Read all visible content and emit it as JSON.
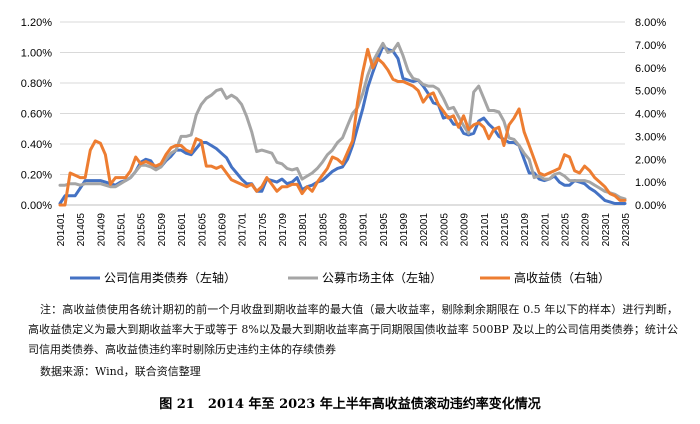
{
  "chart_data": {
    "type": "line",
    "categories": [
      "201401",
      "201402",
      "201403",
      "201404",
      "201405",
      "201406",
      "201407",
      "201408",
      "201409",
      "201410",
      "201411",
      "201412",
      "201501",
      "201502",
      "201503",
      "201504",
      "201505",
      "201506",
      "201507",
      "201508",
      "201509",
      "201510",
      "201511",
      "201512",
      "201601",
      "201602",
      "201603",
      "201604",
      "201605",
      "201606",
      "201607",
      "201608",
      "201609",
      "201610",
      "201611",
      "201612",
      "201701",
      "201702",
      "201703",
      "201704",
      "201705",
      "201706",
      "201707",
      "201708",
      "201709",
      "201710",
      "201711",
      "201712",
      "201801",
      "201802",
      "201803",
      "201804",
      "201805",
      "201806",
      "201807",
      "201808",
      "201809",
      "201810",
      "201811",
      "201812",
      "201901",
      "201902",
      "201903",
      "201904",
      "201905",
      "201906",
      "201907",
      "201908",
      "201909",
      "201910",
      "201911",
      "201912",
      "202001",
      "202002",
      "202003",
      "202004",
      "202005",
      "202006",
      "202007",
      "202008",
      "202009",
      "202010",
      "202011",
      "202012",
      "202101",
      "202102",
      "202103",
      "202104",
      "202105",
      "202106",
      "202107",
      "202108",
      "202109",
      "202110",
      "202111",
      "202112",
      "202201",
      "202202",
      "202203",
      "202204",
      "202205",
      "202206",
      "202207",
      "202208",
      "202209",
      "202210",
      "202211",
      "202212",
      "202301",
      "202302",
      "202303",
      "202304",
      "202305"
    ],
    "x_tick_labels": [
      "201401",
      "201405",
      "201409",
      "201501",
      "201505",
      "201509",
      "201601",
      "201605",
      "201609",
      "201701",
      "201705",
      "201709",
      "201801",
      "201805",
      "201809",
      "201901",
      "201905",
      "201909",
      "202001",
      "202005",
      "202009",
      "202101",
      "202105",
      "202109",
      "202201",
      "202205",
      "202209",
      "202301",
      "202305"
    ],
    "left_axis": {
      "min": 0,
      "max": 0.012,
      "step": 0.002,
      "tick_labels": [
        "0.00%",
        "0.20%",
        "0.40%",
        "0.60%",
        "0.80%",
        "1.00%",
        "1.20%"
      ]
    },
    "right_axis": {
      "min": 0,
      "max": 0.08,
      "step": 0.01,
      "tick_labels": [
        "0.00%",
        "1.00%",
        "2.00%",
        "3.00%",
        "4.00%",
        "5.00%",
        "6.00%",
        "7.00%",
        "8.00%"
      ]
    },
    "grid": "horizontal",
    "legend_position": "bottom",
    "series": [
      {
        "name": "公司信用类债券（左轴）",
        "axis": "left",
        "color": "#4472C4",
        "values": [
          0.0001,
          0.0006,
          0.0006,
          0.0006,
          0.0011,
          0.0016,
          0.0016,
          0.0016,
          0.0016,
          0.0015,
          0.0014,
          0.0013,
          0.0015,
          0.0016,
          0.0018,
          0.0022,
          0.0028,
          0.003,
          0.0029,
          0.0024,
          0.0025,
          0.0029,
          0.0032,
          0.0036,
          0.0036,
          0.0034,
          0.0033,
          0.0037,
          0.0041,
          0.0041,
          0.0039,
          0.0037,
          0.0034,
          0.0031,
          0.0025,
          0.0021,
          0.0017,
          0.0014,
          0.0014,
          0.0009,
          0.0009,
          0.0017,
          0.0016,
          0.0015,
          0.0017,
          0.0014,
          0.0015,
          0.0018,
          0.001,
          0.0012,
          0.0013,
          0.0015,
          0.0016,
          0.0019,
          0.0022,
          0.0024,
          0.0025,
          0.003,
          0.0039,
          0.0051,
          0.0063,
          0.0077,
          0.0087,
          0.0096,
          0.0104,
          0.0102,
          0.0101,
          0.0096,
          0.0083,
          0.0082,
          0.0081,
          0.0082,
          0.0078,
          0.0073,
          0.0067,
          0.0066,
          0.0057,
          0.0058,
          0.0053,
          0.0053,
          0.0047,
          0.0046,
          0.0047,
          0.0055,
          0.0057,
          0.0053,
          0.005,
          0.0045,
          0.0043,
          0.0041,
          0.0041,
          0.0039,
          0.003,
          0.0021,
          0.0021,
          0.0017,
          0.0016,
          0.0017,
          0.0019,
          0.0015,
          0.0013,
          0.0013,
          0.0016,
          0.0015,
          0.0014,
          0.0011,
          0.0009,
          0.0006,
          0.0003,
          0.0002,
          0.0001,
          0.0001,
          0.0001
        ]
      },
      {
        "name": "公募市场主体（左轴）",
        "axis": "left",
        "color": "#A5A5A5",
        "values": [
          0.0013,
          0.0013,
          0.0014,
          0.0014,
          0.0013,
          0.0014,
          0.0014,
          0.0014,
          0.0014,
          0.0013,
          0.0012,
          0.0012,
          0.0014,
          0.0016,
          0.0018,
          0.0022,
          0.0026,
          0.0026,
          0.0025,
          0.0023,
          0.0025,
          0.003,
          0.0034,
          0.0036,
          0.0045,
          0.0045,
          0.0046,
          0.0059,
          0.0066,
          0.007,
          0.0072,
          0.0075,
          0.0076,
          0.007,
          0.0072,
          0.007,
          0.0066,
          0.0058,
          0.0048,
          0.0035,
          0.0036,
          0.0035,
          0.0034,
          0.0028,
          0.0027,
          0.0024,
          0.0023,
          0.0024,
          0.0017,
          0.0019,
          0.0021,
          0.0024,
          0.0028,
          0.0033,
          0.0036,
          0.0041,
          0.0044,
          0.0052,
          0.006,
          0.0064,
          0.0073,
          0.0085,
          0.0094,
          0.01,
          0.0106,
          0.01,
          0.0101,
          0.0106,
          0.0098,
          0.0088,
          0.0083,
          0.0082,
          0.0079,
          0.0078,
          0.0078,
          0.0076,
          0.007,
          0.0063,
          0.0064,
          0.0058,
          0.0052,
          0.0047,
          0.0074,
          0.0078,
          0.007,
          0.0062,
          0.0062,
          0.0061,
          0.0055,
          0.0044,
          0.0043,
          0.0039,
          0.0034,
          0.003,
          0.0018,
          0.0019,
          0.0017,
          0.0017,
          0.002,
          0.0021,
          0.0019,
          0.0016,
          0.0016,
          0.0016,
          0.0016,
          0.0015,
          0.0013,
          0.0011,
          0.0009,
          0.0008,
          0.0007,
          0.0005,
          0.0004
        ]
      },
      {
        "name": "高收益债（右轴）",
        "axis": "right",
        "color": "#ED7D31",
        "values": [
          0.0,
          0.0,
          0.014,
          0.013,
          0.012,
          0.012,
          0.024,
          0.028,
          0.027,
          0.022,
          0.009,
          0.012,
          0.012,
          0.012,
          0.015,
          0.021,
          0.018,
          0.019,
          0.018,
          0.017,
          0.018,
          0.022,
          0.025,
          0.026,
          0.026,
          0.024,
          0.023,
          0.029,
          0.028,
          0.017,
          0.017,
          0.016,
          0.017,
          0.014,
          0.011,
          0.01,
          0.009,
          0.008,
          0.009,
          0.006,
          0.008,
          0.012,
          0.009,
          0.006,
          0.008,
          0.008,
          0.009,
          0.009,
          0.005,
          0.008,
          0.006,
          0.01,
          0.013,
          0.016,
          0.021,
          0.02,
          0.018,
          0.023,
          0.028,
          0.045,
          0.058,
          0.068,
          0.06,
          0.064,
          0.062,
          0.059,
          0.055,
          0.054,
          0.054,
          0.053,
          0.052,
          0.05,
          0.045,
          0.048,
          0.049,
          0.044,
          0.041,
          0.038,
          0.039,
          0.034,
          0.039,
          0.033,
          0.035,
          0.036,
          0.034,
          0.029,
          0.033,
          0.034,
          0.026,
          0.035,
          0.038,
          0.042,
          0.032,
          0.026,
          0.02,
          0.014,
          0.013,
          0.014,
          0.015,
          0.016,
          0.022,
          0.021,
          0.015,
          0.014,
          0.017,
          0.015,
          0.012,
          0.01,
          0.008,
          0.005,
          0.004,
          0.002,
          0.002
        ]
      }
    ]
  },
  "note": "注：高收益债使用各统计期初的前一个月收盘到期收益率的最大值（最大收益率，剔除剩余期限在 0.5 年以下的样本）进行判断，高收益债定义为最大到期收益率大于或等于 8%以及最大到期收益率高于同期限国债收益率 500BP 及以上的公司信用类债券；统计公司信用类债券、高收益债违约率时剔除历史违约主体的存续债券",
  "source": "数据来源：Wind，联合资信整理",
  "caption": "图 21　2014 年至 2023 年上半年高收益债滚动违约率变化情况"
}
